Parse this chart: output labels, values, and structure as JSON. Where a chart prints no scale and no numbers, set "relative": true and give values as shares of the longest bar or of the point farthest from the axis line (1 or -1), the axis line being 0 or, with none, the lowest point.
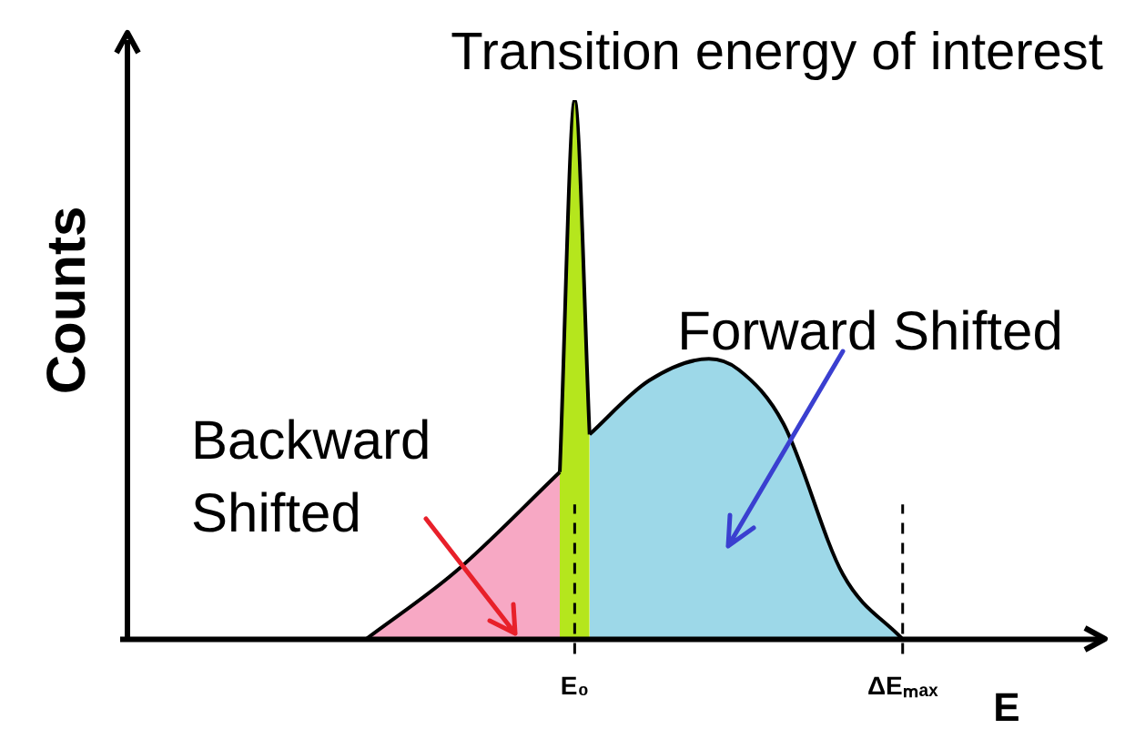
{
  "chart_data": {
    "type": "area",
    "relative": true,
    "legend": false,
    "title": "Transition energy of interest",
    "xlabel": "E",
    "ylabel": "Counts",
    "categories": [
      null,
      null,
      null,
      null,
      null,
      null,
      null,
      null,
      null,
      null,
      null,
      null,
      null,
      null,
      null,
      null,
      null,
      null,
      null,
      null,
      null,
      null,
      null,
      null,
      null,
      null,
      null,
      null,
      null,
      null,
      "E₀",
      null,
      null,
      null,
      null,
      null,
      null,
      null,
      null,
      null,
      null,
      null,
      null,
      null,
      null,
      null,
      null,
      null,
      null,
      null,
      null,
      null,
      "ΔEₘₐₓ",
      null,
      null,
      null,
      null,
      null,
      null
    ],
    "series": [
      {
        "color": "#f7a8c4",
        "values": [
          null,
          null,
          null,
          null,
          null,
          null,
          null,
          null,
          null,
          null,
          null,
          null,
          null,
          null,
          null,
          null,
          0,
          null,
          null,
          null,
          null,
          null,
          0.125,
          null,
          null,
          null,
          null,
          null,
          null,
          0.31,
          null,
          null,
          null,
          null,
          null,
          null,
          null,
          null,
          null,
          null,
          null,
          null,
          null,
          null,
          null,
          null,
          null,
          null,
          null,
          null,
          null,
          null,
          null,
          null,
          null,
          null,
          null,
          null,
          null
        ]
      },
      {
        "color": "#b5e61d",
        "values": [
          null,
          null,
          null,
          null,
          null,
          null,
          null,
          null,
          null,
          null,
          null,
          null,
          null,
          null,
          null,
          null,
          null,
          null,
          null,
          null,
          null,
          null,
          null,
          null,
          null,
          null,
          null,
          null,
          null,
          0.31,
          1,
          0.38,
          null,
          null,
          null,
          null,
          null,
          null,
          null,
          null,
          null,
          null,
          null,
          null,
          null,
          null,
          null,
          null,
          null,
          null,
          null,
          null,
          null,
          null,
          null,
          null,
          null,
          null,
          null
        ]
      },
      {
        "color": "#9dd8e8",
        "values": [
          null,
          null,
          null,
          null,
          null,
          null,
          null,
          null,
          null,
          null,
          null,
          null,
          null,
          null,
          null,
          null,
          null,
          null,
          null,
          null,
          null,
          null,
          null,
          null,
          null,
          null,
          null,
          null,
          null,
          null,
          null,
          0.38,
          null,
          null,
          null,
          0.48,
          null,
          null,
          null,
          0.52,
          null,
          0.5,
          null,
          null,
          0.4,
          null,
          null,
          null,
          0.12,
          null,
          null,
          null,
          0,
          null,
          null,
          null,
          null,
          null,
          null
        ]
      }
    ],
    "annotations": [
      "Forward Shifted",
      "Backward\nShifted"
    ],
    "ref_lines": [
      {
        "axis": "x",
        "value": "E₀",
        "line_style": "dashed"
      },
      {
        "axis": "x",
        "value": "ΔEₘₐₓ",
        "line_style": "dashed"
      }
    ]
  }
}
